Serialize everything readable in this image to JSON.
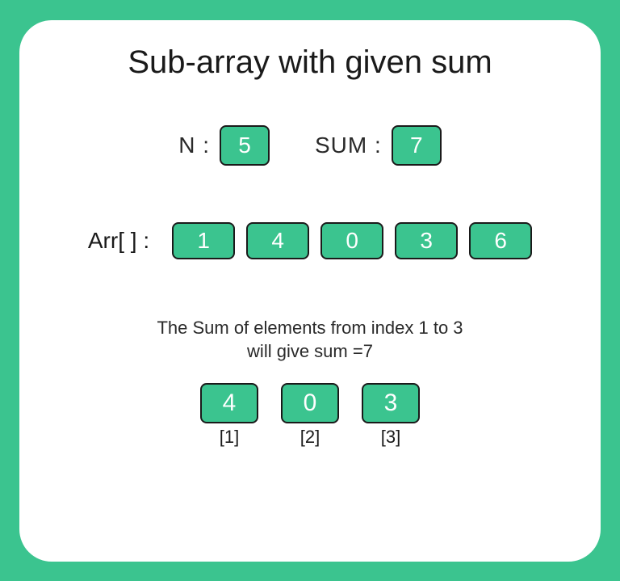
{
  "title": "Sub-array with given sum",
  "inputs": {
    "n_label": "N :",
    "n_value": "5",
    "sum_label": "SUM :",
    "sum_value": "7"
  },
  "array": {
    "label": "Arr[ ] :",
    "values": [
      "1",
      "4",
      "0",
      "3",
      "6"
    ]
  },
  "explanation": {
    "line1": "The Sum of elements from index 1 to 3",
    "line2": "will give sum =7"
  },
  "result": {
    "items": [
      {
        "value": "4",
        "index": "[1]"
      },
      {
        "value": "0",
        "index": "[2]"
      },
      {
        "value": "3",
        "index": "[3]"
      }
    ]
  },
  "styling": {
    "background_color": "#3bc48f",
    "card_background": "#ffffff",
    "card_border_radius": 40,
    "box_background": "#3bc48f",
    "box_border": "#1a1a1a",
    "box_text_color": "#ffffff",
    "title_fontsize": 40,
    "label_fontsize": 28,
    "box_fontsize": 28,
    "explain_fontsize": 22,
    "index_fontsize": 22,
    "type": "infographic"
  }
}
